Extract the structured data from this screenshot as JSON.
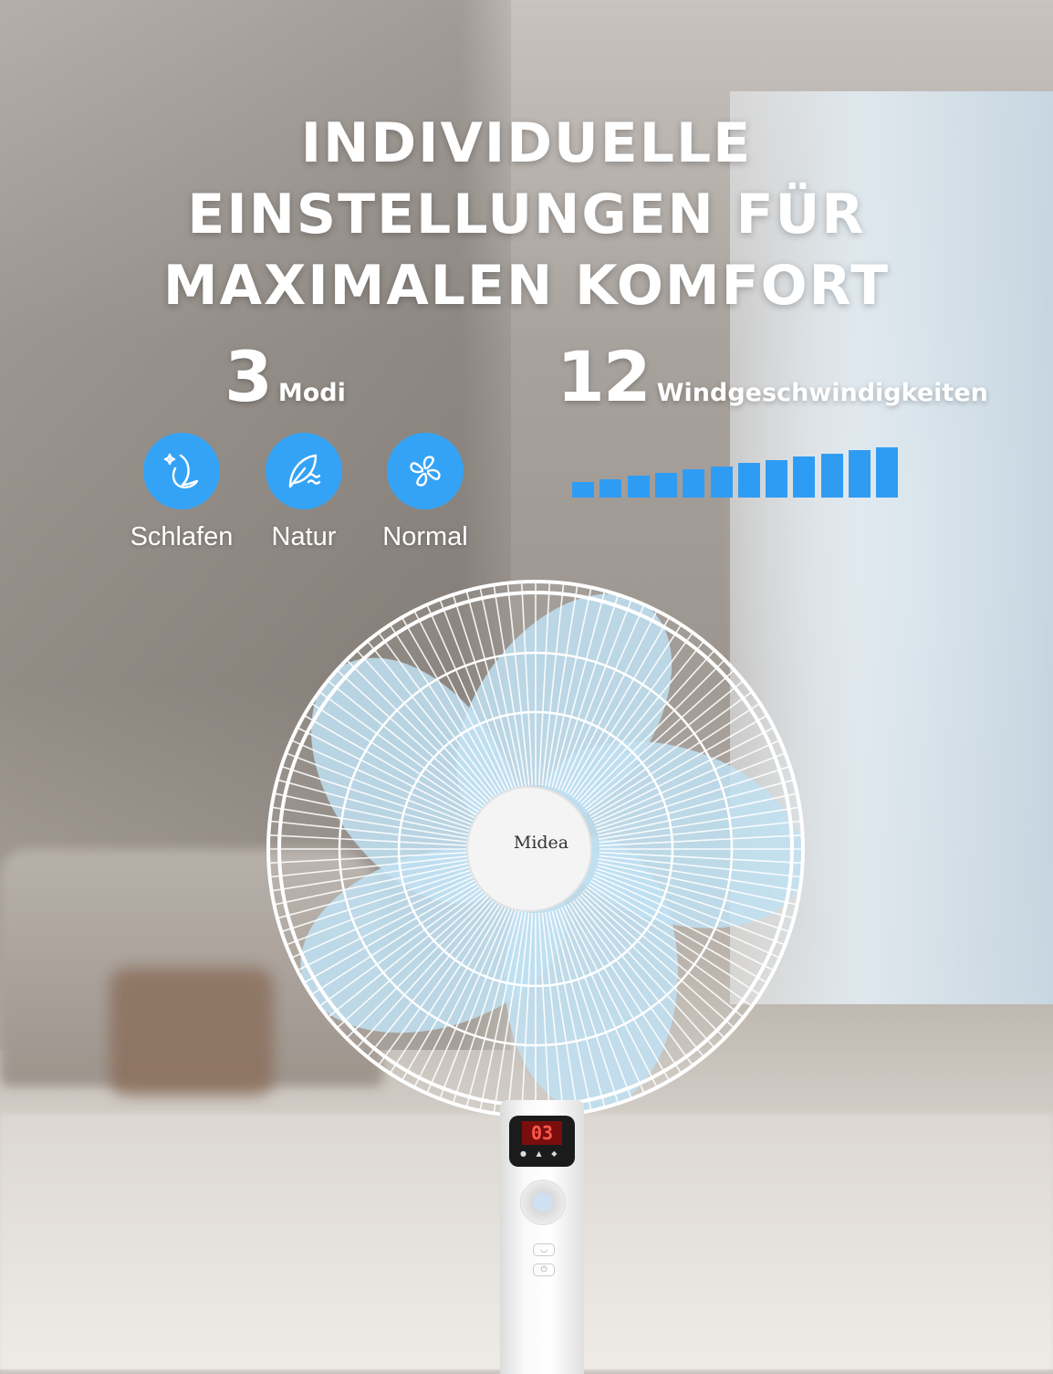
{
  "headline": {
    "lines": [
      "INDIVIDUELLE",
      "EINSTELLUNGEN FÜR",
      "MAXIMALEN KOMFORT"
    ]
  },
  "modes": {
    "count": "3",
    "label": "Modi",
    "items": [
      {
        "label": "Schlafen",
        "icon": "moon-stars-icon"
      },
      {
        "label": "Natur",
        "icon": "leaf-wave-icon"
      },
      {
        "label": "Normal",
        "icon": "fan-icon"
      }
    ]
  },
  "speeds": {
    "count": "12",
    "label": "Windgeschwindigkeiten",
    "levels": 12
  },
  "product": {
    "brand": "Midea",
    "display_value": "03"
  },
  "colors": {
    "accent": "#35a3f5",
    "bar": "#2f9cf4",
    "blade": "#bfe0f2",
    "text": "#ffffff"
  }
}
